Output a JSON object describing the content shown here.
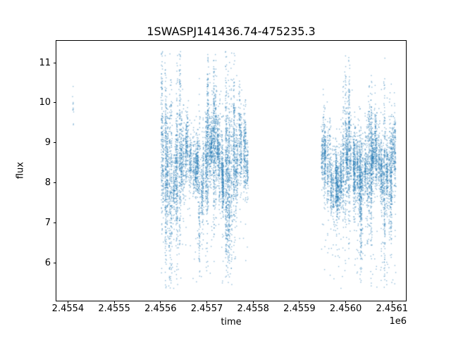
{
  "figure": {
    "background": "#ffffff"
  },
  "chart_data": {
    "type": "scatter",
    "title": "1SWASPJ141436.74-475235.3",
    "xlabel": "time",
    "ylabel": "flux",
    "x_offset_label": "1e6",
    "grid": false,
    "legend": null,
    "xlim": [
      2455375,
      2456130
    ],
    "ylim": [
      5.05,
      11.55
    ],
    "xticks": [
      {
        "value": 2455400,
        "label": "2.4554"
      },
      {
        "value": 2455500,
        "label": "2.4555"
      },
      {
        "value": 2455600,
        "label": "2.4556"
      },
      {
        "value": 2455700,
        "label": "2.4557"
      },
      {
        "value": 2455800,
        "label": "2.4558"
      },
      {
        "value": 2455900,
        "label": "2.4559"
      },
      {
        "value": 2456000,
        "label": "2.4560"
      },
      {
        "value": 2456100,
        "label": "2.4561"
      }
    ],
    "yticks": [
      {
        "value": 6,
        "label": "6"
      },
      {
        "value": 7,
        "label": "7"
      },
      {
        "value": 8,
        "label": "8"
      },
      {
        "value": 9,
        "label": "9"
      },
      {
        "value": 10,
        "label": "10"
      },
      {
        "value": 11,
        "label": "11"
      }
    ],
    "marker": {
      "color": "#1f77b4",
      "alpha": 0.5,
      "size": 1.4
    },
    "points_spec": {
      "seed": 20,
      "f_clip": [
        5.35,
        11.28
      ],
      "seasons": [
        {
          "name": "early-single-night",
          "t_start": 2455411,
          "t_end": 2455411,
          "n_nights": 1,
          "night_jitter": 0,
          "t_spread": 0.6,
          "mean_base": 9.82,
          "mean_amp": 0,
          "mean_period": 60,
          "mean_phase": 0,
          "mean_noise": 0,
          "std_base": 0.34,
          "std_noise": 0,
          "active_prob": 0,
          "active_std_min": 0,
          "active_std_max": 0,
          "active_pts_mult": 1,
          "pts_min": 11,
          "pts_max": 14,
          "tail_prob": 0,
          "tail_down": 0,
          "tail_up": 0,
          "f_clip": [
            9.2,
            10.45
          ]
        },
        {
          "name": "season-1",
          "t_start": 2455602,
          "t_end": 2455788,
          "n_nights": 44,
          "night_jitter": 2.5,
          "t_spread": 1.0,
          "mean_base": 8.45,
          "mean_amp": 0.42,
          "mean_period": 60,
          "mean_phase": 2.4,
          "mean_noise": 0.22,
          "std_base": 0.3,
          "std_noise": 0.18,
          "active_prob": 0.3,
          "active_std_min": 0.85,
          "active_std_max": 1.35,
          "active_pts_mult": 1.5,
          "pts_min": 60,
          "pts_max": 170,
          "tail_prob": 0.035,
          "tail_down": 2.8,
          "tail_up": 1.3
        },
        {
          "name": "season-2",
          "t_start": 2455948,
          "t_end": 2456106,
          "n_nights": 38,
          "night_jitter": 2.5,
          "t_spread": 1.0,
          "mean_base": 8.35,
          "mean_amp": 0.4,
          "mean_period": 54,
          "mean_phase": 0.9,
          "mean_noise": 0.2,
          "std_base": 0.3,
          "std_noise": 0.18,
          "active_prob": 0.32,
          "active_std_min": 0.8,
          "active_std_max": 1.3,
          "active_pts_mult": 1.5,
          "pts_min": 60,
          "pts_max": 170,
          "tail_prob": 0.04,
          "tail_down": 2.9,
          "tail_up": 1.3
        }
      ]
    }
  }
}
